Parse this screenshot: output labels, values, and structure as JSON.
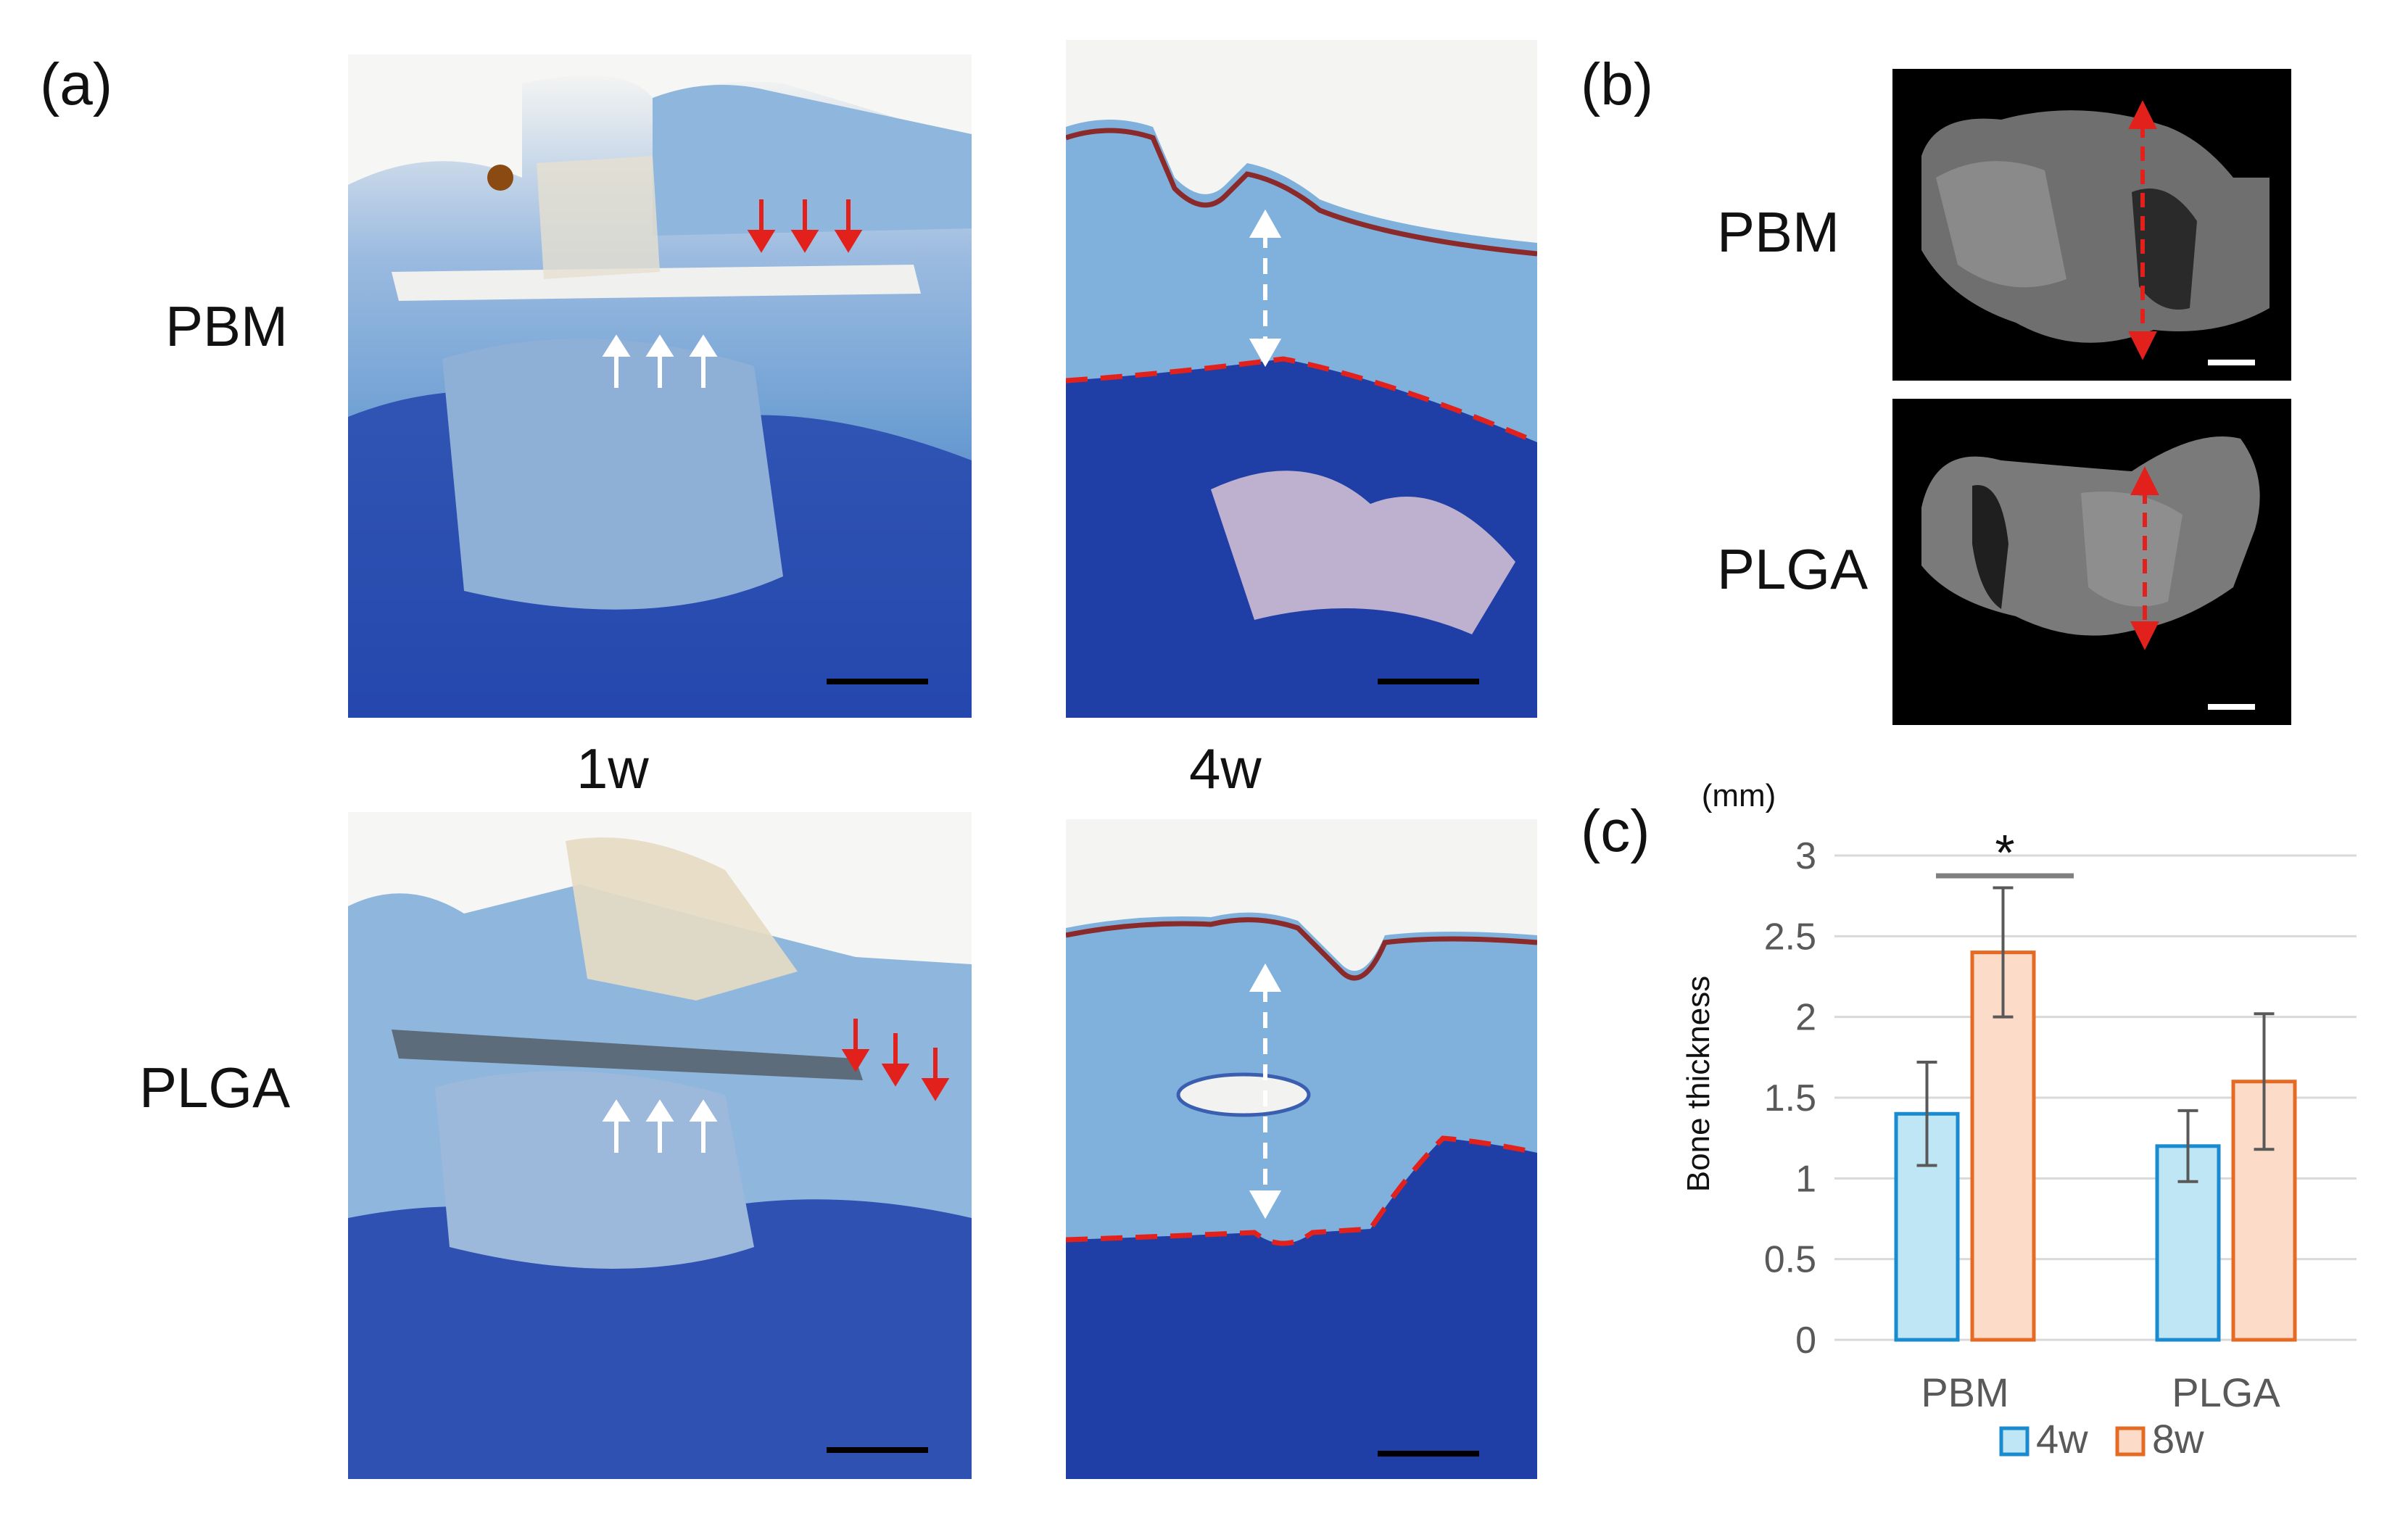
{
  "panels": {
    "a_label": "(a)",
    "b_label": "(b)",
    "c_label": "(c)"
  },
  "panel_a": {
    "row_pbm": "PBM",
    "row_plga": "PLGA",
    "time_1w": "1w",
    "time_4w": "4w"
  },
  "panel_b": {
    "row_pbm": "PBM",
    "row_plga": "PLGA"
  },
  "colors": {
    "tissue_light": "#8fb6dc",
    "tissue_mid": "#4f88c9",
    "bone_dark": "#1f3fa6",
    "arrow_red": "#e3211c",
    "arrow_white": "#ffffff",
    "series_4w_fill": "#bfe6f5",
    "series_4w_stroke": "#1b8bd0",
    "series_8w_fill": "#fcdcc9",
    "series_8w_stroke": "#e56b25",
    "error_bar": "#595959",
    "grid": "#d9d9d9"
  },
  "chart_data": {
    "type": "bar",
    "categories": [
      "PBM",
      "PLGA"
    ],
    "series": [
      {
        "name": "4w",
        "values": [
          1.4,
          1.2
        ],
        "errors": [
          0.32,
          0.22
        ]
      },
      {
        "name": "8w",
        "values": [
          2.4,
          1.6
        ],
        "errors": [
          0.4,
          0.42
        ]
      }
    ],
    "xlabel": "",
    "ylabel": "Bone thickness",
    "unit": "(mm)",
    "ylim": [
      0,
      3
    ],
    "yticks": [
      "0",
      "0.5",
      "1",
      "1.5",
      "2",
      "2.5",
      "3"
    ],
    "significance": "*",
    "grid": true,
    "legend": "bottom"
  }
}
